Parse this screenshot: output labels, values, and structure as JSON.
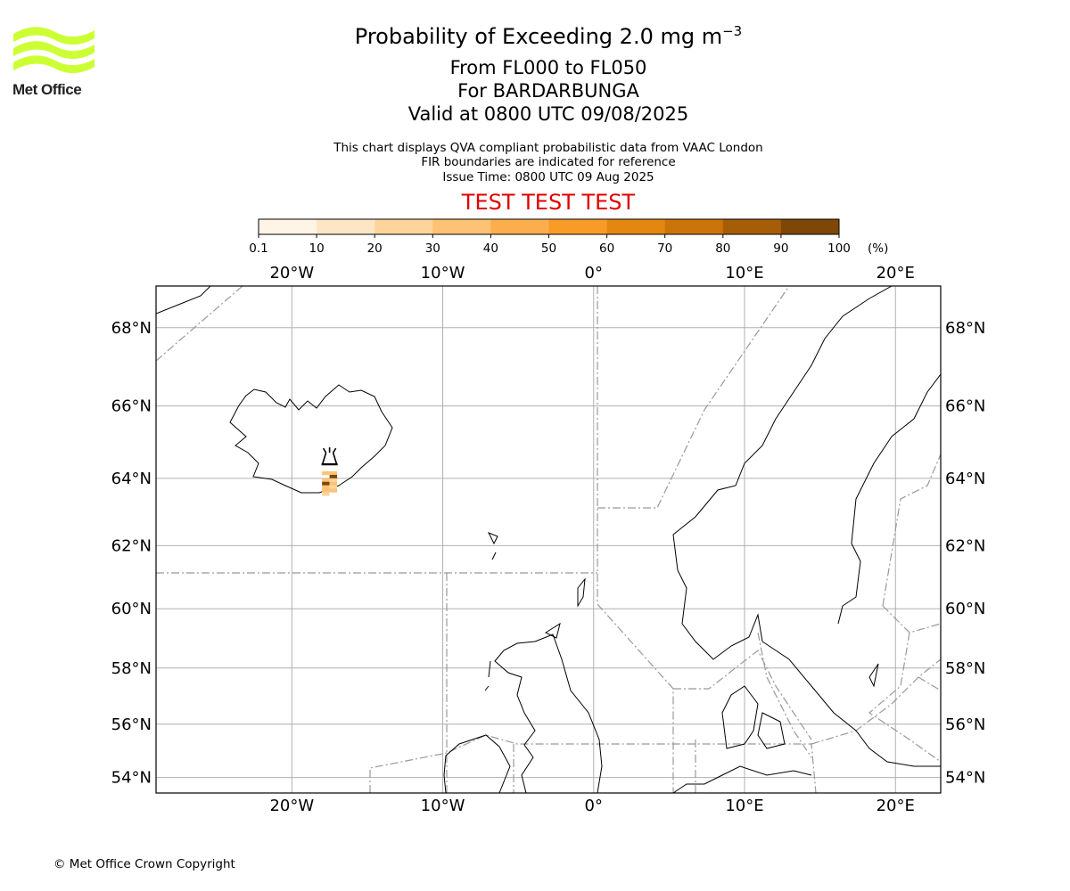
{
  "title": {
    "line1_prefix": "Probability of Exceeding 2.0 mg m",
    "line1_sup": "−3",
    "line2": "From FL000 to FL050",
    "line3": "For BARDARBUNGA",
    "line4": "Valid at 0800 UTC 09/08/2025"
  },
  "subtitle": {
    "line1": "This chart displays QVA compliant probabilistic data from VAAC London",
    "line2": "FIR boundaries are indicated for reference",
    "line3": "Issue Time: 0800 UTC 09 Aug 2025"
  },
  "banner": {
    "text": "TEST TEST TEST",
    "color": "#e00000"
  },
  "logo": {
    "text": "Met Office",
    "color": "#ccff33"
  },
  "colorbar": {
    "tick_labels": [
      "0.1",
      "10",
      "20",
      "30",
      "40",
      "50",
      "60",
      "70",
      "80",
      "90",
      "100"
    ],
    "unit": "(%)",
    "colors": [
      "#fff5e6",
      "#fee6c4",
      "#fdd49c",
      "#fdc274",
      "#fcad4c",
      "#f99c27",
      "#e38710",
      "#cb7409",
      "#a65d07",
      "#7f4705",
      "#5e3402"
    ]
  },
  "map": {
    "lon_range": [
      -29,
      23
    ],
    "lat_range": [
      53.4,
      69.0
    ],
    "lon_ticks": [
      {
        "lon": -20,
        "label": "20°W"
      },
      {
        "lon": -10,
        "label": "10°W"
      },
      {
        "lon": 0,
        "label": "0°"
      },
      {
        "lon": 10,
        "label": "10°E"
      },
      {
        "lon": 20,
        "label": "20°E"
      }
    ],
    "lat_ticks": [
      {
        "lat": 54,
        "label": "54°N"
      },
      {
        "lat": 56,
        "label": "56°N"
      },
      {
        "lat": 58,
        "label": "58°N"
      },
      {
        "lat": 60,
        "label": "60°N"
      },
      {
        "lat": 62,
        "label": "62°N"
      },
      {
        "lat": 64,
        "label": "64°N"
      },
      {
        "lat": 66,
        "label": "66°N"
      },
      {
        "lat": 68,
        "label": "68°N"
      }
    ],
    "volcano": {
      "name": "BARDARBUNGA",
      "lon": -17.5,
      "lat": 64.6,
      "icon": "volcano-icon"
    },
    "probability_cells": [
      {
        "lon": -17.75,
        "lat": 64.15,
        "bin": 3
      },
      {
        "lon": -17.25,
        "lat": 64.15,
        "bin": 3
      },
      {
        "lon": -17.25,
        "lat": 64.05,
        "bin": 9
      },
      {
        "lon": -17.75,
        "lat": 63.95,
        "bin": 3
      },
      {
        "lon": -17.25,
        "lat": 63.95,
        "bin": 2
      },
      {
        "lon": -17.75,
        "lat": 63.85,
        "bin": 9
      },
      {
        "lon": -17.25,
        "lat": 63.85,
        "bin": 3
      },
      {
        "lon": -17.75,
        "lat": 63.75,
        "bin": 3
      },
      {
        "lon": -17.25,
        "lat": 63.75,
        "bin": 2
      },
      {
        "lon": -17.75,
        "lat": 63.65,
        "bin": 3
      },
      {
        "lon": -17.25,
        "lat": 63.65,
        "bin": 3
      },
      {
        "lon": -17.75,
        "lat": 63.55,
        "bin": 2
      }
    ]
  },
  "copyright": "© Met Office Crown Copyright"
}
